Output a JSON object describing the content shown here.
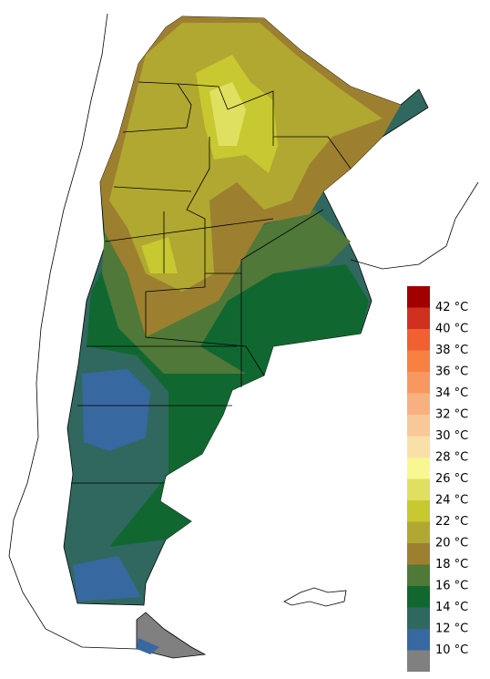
{
  "legend": {
    "labels": [
      "42 °C",
      "40 °C",
      "38 °C",
      "36 °C",
      "34 °C",
      "32 °C",
      "30 °C",
      "28 °C",
      "26 °C",
      "24 °C",
      "22 °C",
      "20 °C",
      "18 °C",
      "16 °C",
      "14 °C",
      "12 °C",
      "10 °C"
    ],
    "colors": [
      "#a00000",
      "#d03020",
      "#f06030",
      "#f88040",
      "#f89860",
      "#f8b080",
      "#f8c898",
      "#f8e0a8",
      "#f8f890",
      "#e0e060",
      "#c8c830",
      "#b0a830",
      "#9c8030",
      "#507838",
      "#106830",
      "#306860",
      "#3868a0",
      "#808080"
    ]
  }
}
